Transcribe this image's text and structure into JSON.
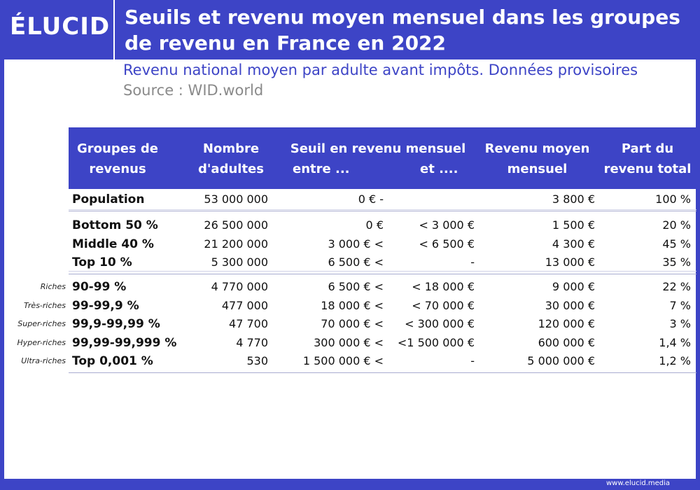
{
  "header": {
    "logo": "ÉLUCID",
    "title": "Seuils et revenu moyen mensuel dans les groupes de revenu en France en 2022",
    "subtitle": "Revenu national moyen par adulte avant impôts. Données provisoires",
    "source": "Source : WID.world"
  },
  "table": {
    "columns": {
      "group": "Groupes de revenus",
      "adults": "Nombre d'adultes",
      "threshold": "Seuil en revenu mensuel",
      "from": "entre ...",
      "to": "et ....",
      "mean": "Revenu moyen mensuel",
      "share": "Part du revenu total"
    },
    "sections": [
      {
        "rows": [
          {
            "group": "Population",
            "adults": "53 000 000",
            "from": "0 € -",
            "mean": "3 800 €",
            "share": "100 %"
          }
        ]
      },
      {
        "rows": [
          {
            "group": "Bottom 50 %",
            "adults": "26 500 000",
            "from": "0 €",
            "to": "< 3 000 €",
            "mean": "1 500 €",
            "share": "20 %"
          },
          {
            "group": "Middle 40 %",
            "adults": "21 200 000",
            "from": "3 000 € <",
            "to": "< 6 500 €",
            "mean": "4 300 €",
            "share": "45 %"
          },
          {
            "group": "Top 10 %",
            "adults": "5 300 000",
            "from": "6 500 € <",
            "to": "-",
            "mean": "13 000 €",
            "share": "35 %"
          }
        ]
      },
      {
        "rows": [
          {
            "label": "Riches",
            "group": "90-99 %",
            "adults": "4 770 000",
            "from": "6 500 € <",
            "to": "< 18 000 €",
            "mean": "9 000 €",
            "share": "22 %"
          },
          {
            "label": "Très-riches",
            "group": "99-99,9 %",
            "adults": "477 000",
            "from": "18 000 € <",
            "to": "< 70 000 €",
            "mean": "30 000 €",
            "share": "7 %"
          },
          {
            "label": "Super-riches",
            "group": "99,9-99,99 %",
            "adults": "47 700",
            "from": "70 000 € <",
            "to": "< 300 000 €",
            "mean": "120 000 €",
            "share": "3 %"
          },
          {
            "label": "Hyper-riches",
            "group": "99,99-99,999 %",
            "adults": "4 770",
            "from": "300 000 € <",
            "to": "<1 500 000 €",
            "mean": "600 000 €",
            "share": "1,4 %"
          },
          {
            "label": "Ultra-riches",
            "group": "Top 0,001 %",
            "adults": "530",
            "from": "1 500 000 € <",
            "to": "-",
            "mean": "5 000 000 €",
            "share": "1,2 %"
          }
        ]
      }
    ]
  },
  "footer": {
    "url": "www.elucid.media"
  }
}
